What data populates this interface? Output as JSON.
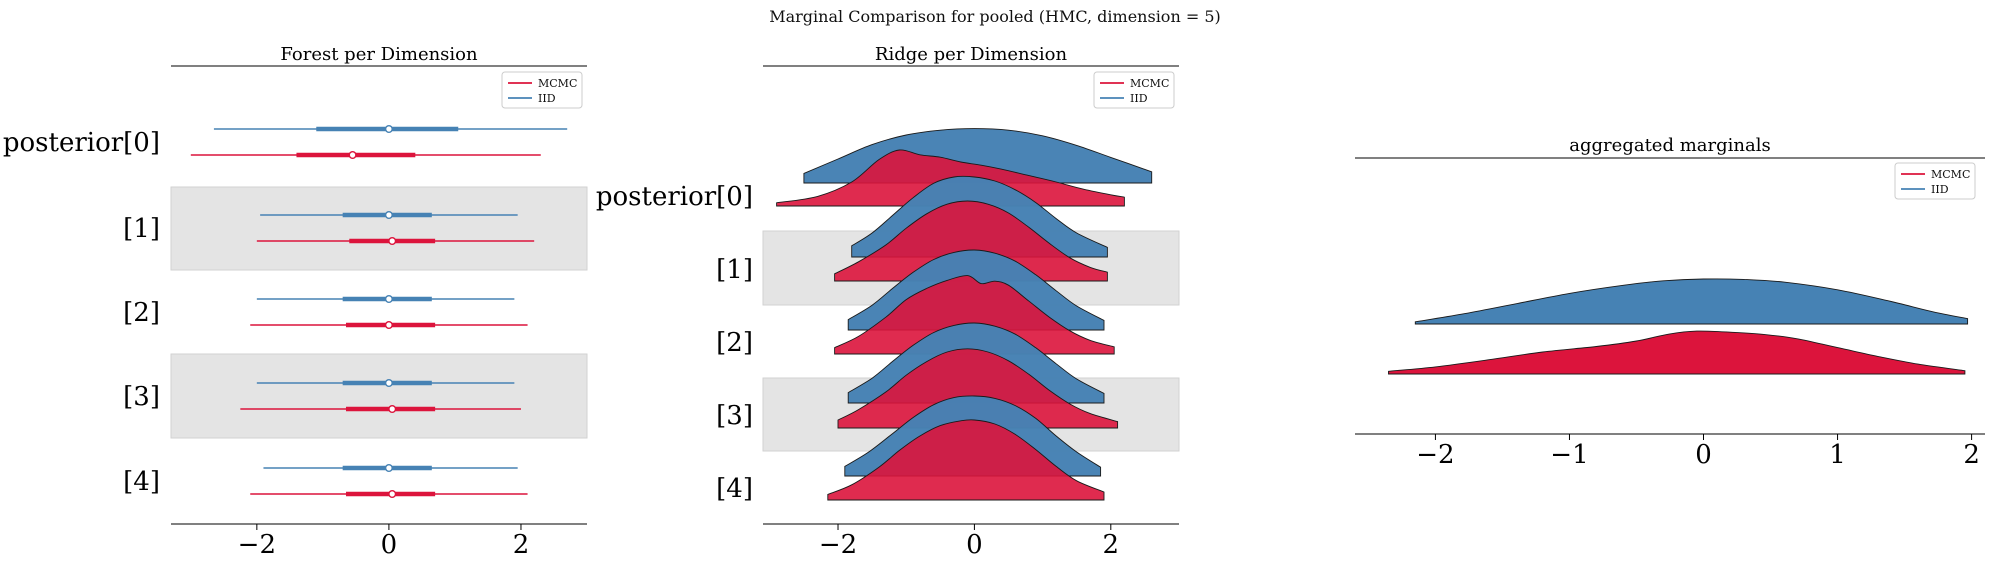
{
  "suptitle": "Marginal Comparison for pooled (HMC, dimension = 5)",
  "colors": {
    "mcmc": "#dc143c",
    "iid": "#4682b4",
    "band": "#e4e4e4",
    "axis": "#000000"
  },
  "chart_data": [
    {
      "type": "forest",
      "title": "Forest per Dimension",
      "labels": [
        "posterior[0]",
        "[1]",
        "[2]",
        "[3]",
        "[4]"
      ],
      "shaded_rows": [
        1,
        3
      ],
      "xlim": [
        -3.3,
        3.0
      ],
      "xticks": [
        -2,
        0,
        2
      ],
      "xtick_labels": [
        "−2",
        "0",
        "2"
      ],
      "legend": {
        "position": "top-right",
        "entries": [
          "MCMC",
          "IID"
        ]
      },
      "series": [
        {
          "name": "MCMC",
          "color": "#dc143c",
          "hdi94": [
            [
              -3.0,
              2.3
            ],
            [
              -2.0,
              2.2
            ],
            [
              -2.1,
              2.1
            ],
            [
              -2.25,
              2.0
            ],
            [
              -2.1,
              2.1
            ]
          ],
          "hdi50": [
            [
              -1.4,
              0.4
            ],
            [
              -0.6,
              0.7
            ],
            [
              -0.65,
              0.7
            ],
            [
              -0.65,
              0.7
            ],
            [
              -0.65,
              0.7
            ]
          ],
          "median": [
            -0.55,
            0.05,
            0.0,
            0.05,
            0.05
          ]
        },
        {
          "name": "IID",
          "color": "#4682b4",
          "hdi94": [
            [
              -2.65,
              2.7
            ],
            [
              -1.95,
              1.95
            ],
            [
              -2.0,
              1.9
            ],
            [
              -2.0,
              1.9
            ],
            [
              -1.9,
              1.95
            ]
          ],
          "hdi50": [
            [
              -1.1,
              1.05
            ],
            [
              -0.7,
              0.65
            ],
            [
              -0.7,
              0.65
            ],
            [
              -0.7,
              0.65
            ],
            [
              -0.7,
              0.65
            ]
          ],
          "median": [
            0.0,
            0.0,
            0.0,
            0.0,
            0.0
          ]
        }
      ]
    },
    {
      "type": "ridge",
      "title": "Ridge per Dimension",
      "labels": [
        "posterior[0]",
        "[1]",
        "[2]",
        "[3]",
        "[4]"
      ],
      "shaded_rows": [
        1,
        3
      ],
      "xlim": [
        -3.1,
        3.0
      ],
      "xticks": [
        -2,
        0,
        2
      ],
      "xtick_labels": [
        "−2",
        "0",
        "2"
      ],
      "legend": {
        "position": "top-right",
        "entries": [
          "MCMC",
          "IID"
        ]
      },
      "series": [
        {
          "name": "MCMC",
          "color": "#dc143c",
          "densities": [
            {
              "x": [
                -2.9,
                -2.3,
                -1.8,
                -1.4,
                -1.1,
                -0.8,
                -0.5,
                -0.2,
                0.1,
                0.4,
                0.8,
                1.2,
                1.6,
                2.0,
                2.2
              ],
              "y": [
                0.04,
                0.12,
                0.3,
                0.58,
                0.7,
                0.64,
                0.61,
                0.55,
                0.51,
                0.46,
                0.38,
                0.3,
                0.21,
                0.14,
                0.11
              ]
            },
            {
              "x": [
                -2.05,
                -1.7,
                -1.3,
                -1.0,
                -0.7,
                -0.4,
                -0.1,
                0.2,
                0.5,
                0.8,
                1.1,
                1.4,
                1.7,
                1.95
              ],
              "y": [
                0.09,
                0.24,
                0.45,
                0.66,
                0.84,
                0.96,
                1.0,
                0.96,
                0.85,
                0.67,
                0.47,
                0.29,
                0.17,
                0.11
              ]
            },
            {
              "x": [
                -2.05,
                -1.7,
                -1.3,
                -1.0,
                -0.7,
                -0.4,
                -0.1,
                0.1,
                0.3,
                0.5,
                0.8,
                1.1,
                1.4,
                1.7,
                2.05
              ],
              "y": [
                0.08,
                0.22,
                0.46,
                0.68,
                0.82,
                0.92,
                0.98,
                0.88,
                0.91,
                0.86,
                0.66,
                0.46,
                0.29,
                0.17,
                0.09
              ]
            },
            {
              "x": [
                -2.0,
                -1.7,
                -1.3,
                -1.0,
                -0.7,
                -0.4,
                -0.1,
                0.2,
                0.5,
                0.8,
                1.1,
                1.4,
                1.7,
                2.1
              ],
              "y": [
                0.1,
                0.23,
                0.45,
                0.66,
                0.83,
                0.95,
                0.99,
                0.95,
                0.84,
                0.67,
                0.47,
                0.3,
                0.18,
                0.08
              ]
            },
            {
              "x": [
                -2.15,
                -1.8,
                -1.4,
                -1.1,
                -0.8,
                -0.5,
                -0.2,
                0.0,
                0.3,
                0.6,
                0.9,
                1.2,
                1.5,
                1.9
              ],
              "y": [
                0.07,
                0.19,
                0.41,
                0.62,
                0.8,
                0.93,
                0.99,
                1.0,
                0.95,
                0.82,
                0.63,
                0.42,
                0.24,
                0.1
              ]
            }
          ]
        },
        {
          "name": "IID",
          "color": "#4682b4",
          "densities": [
            {
              "x": [
                -2.5,
                -2.0,
                -1.5,
                -1.0,
                -0.5,
                0.0,
                0.5,
                1.0,
                1.5,
                2.0,
                2.6
              ],
              "y": [
                0.12,
                0.3,
                0.48,
                0.6,
                0.66,
                0.68,
                0.66,
                0.59,
                0.47,
                0.32,
                0.14
              ]
            },
            {
              "x": [
                -1.8,
                -1.5,
                -1.2,
                -0.9,
                -0.6,
                -0.3,
                0.0,
                0.3,
                0.6,
                0.9,
                1.2,
                1.5,
                1.95
              ],
              "y": [
                0.14,
                0.3,
                0.52,
                0.74,
                0.92,
                1.0,
                1.0,
                0.95,
                0.84,
                0.68,
                0.48,
                0.3,
                0.12
              ]
            },
            {
              "x": [
                -1.85,
                -1.5,
                -1.2,
                -0.9,
                -0.6,
                -0.3,
                0.0,
                0.3,
                0.6,
                0.9,
                1.2,
                1.5,
                1.9
              ],
              "y": [
                0.13,
                0.31,
                0.52,
                0.72,
                0.88,
                0.97,
                1.0,
                0.96,
                0.86,
                0.69,
                0.49,
                0.3,
                0.12
              ]
            },
            {
              "x": [
                -1.85,
                -1.5,
                -1.2,
                -0.9,
                -0.6,
                -0.3,
                0.0,
                0.3,
                0.6,
                0.9,
                1.2,
                1.5,
                1.9
              ],
              "y": [
                0.13,
                0.31,
                0.52,
                0.72,
                0.88,
                0.97,
                1.0,
                0.96,
                0.86,
                0.69,
                0.49,
                0.3,
                0.12
              ]
            },
            {
              "x": [
                -1.9,
                -1.55,
                -1.2,
                -0.9,
                -0.6,
                -0.3,
                0.0,
                0.3,
                0.6,
                0.9,
                1.2,
                1.5,
                1.85
              ],
              "y": [
                0.12,
                0.3,
                0.53,
                0.73,
                0.89,
                0.98,
                1.0,
                0.97,
                0.88,
                0.72,
                0.5,
                0.3,
                0.11
              ]
            }
          ]
        }
      ]
    },
    {
      "type": "ridge",
      "title": "aggregated marginals",
      "labels": [],
      "xlim": [
        -2.6,
        2.1
      ],
      "xticks": [
        -2,
        -1,
        0,
        1,
        2
      ],
      "xtick_labels": [
        "−2",
        "−1",
        "0",
        "1",
        "2"
      ],
      "legend": {
        "position": "top-right",
        "entries": [
          "MCMC",
          "IID"
        ]
      },
      "series": [
        {
          "name": "MCMC",
          "color": "#dc143c",
          "density": {
            "x": [
              -2.35,
              -2.0,
              -1.6,
              -1.2,
              -0.8,
              -0.5,
              -0.25,
              -0.05,
              0.2,
              0.45,
              0.7,
              1.0,
              1.3,
              1.6,
              1.95
            ],
            "y": [
              0.05,
              0.13,
              0.26,
              0.4,
              0.5,
              0.6,
              0.73,
              0.78,
              0.76,
              0.72,
              0.64,
              0.48,
              0.32,
              0.18,
              0.06
            ]
          }
        },
        {
          "name": "IID",
          "color": "#4682b4",
          "density": {
            "x": [
              -2.15,
              -1.8,
              -1.4,
              -1.0,
              -0.6,
              -0.3,
              0.0,
              0.3,
              0.6,
              1.0,
              1.4,
              1.7,
              1.97
            ],
            "y": [
              0.05,
              0.22,
              0.45,
              0.68,
              0.86,
              0.96,
              1.0,
              0.99,
              0.93,
              0.76,
              0.5,
              0.28,
              0.12
            ]
          }
        }
      ]
    }
  ]
}
